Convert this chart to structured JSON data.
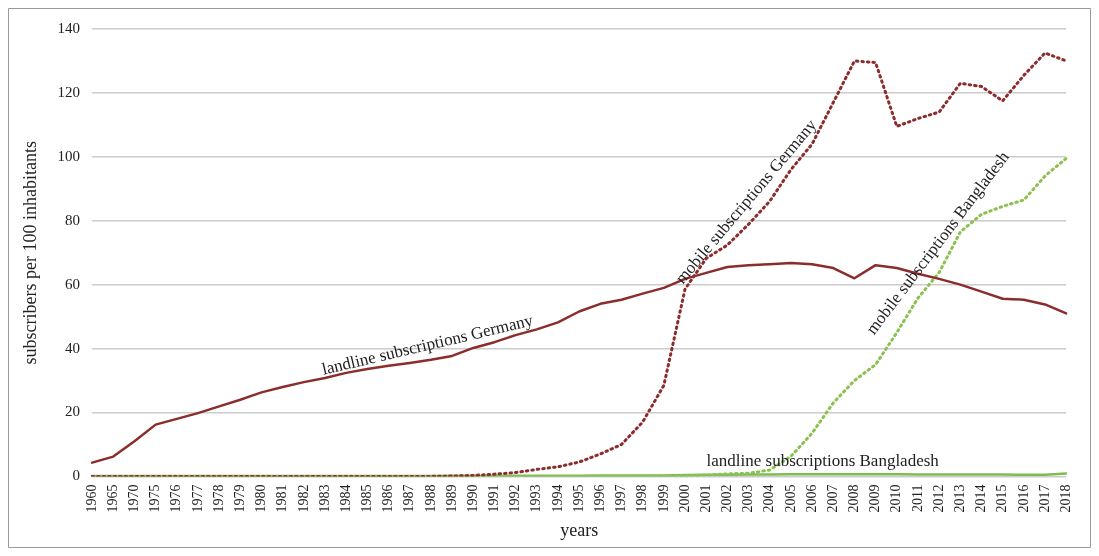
{
  "chart_data": {
    "type": "line",
    "xlabel": "years",
    "ylabel": "subscribers per 100 inhabitants",
    "categories": [
      "1960",
      "1965",
      "1970",
      "1975",
      "1976",
      "1977",
      "1978",
      "1979",
      "1980",
      "1981",
      "1982",
      "1983",
      "1984",
      "1985",
      "1986",
      "1987",
      "1988",
      "1989",
      "1990",
      "1991",
      "1992",
      "1993",
      "1994",
      "1995",
      "1996",
      "1997",
      "1998",
      "1999",
      "2000",
      "2001",
      "2002",
      "2003",
      "2004",
      "2005",
      "2006",
      "2007",
      "2008",
      "2009",
      "2010",
      "2011",
      "2012",
      "2013",
      "2014",
      "2015",
      "2016",
      "2017",
      "2018"
    ],
    "ylim": [
      0,
      140
    ],
    "yticks": [
      0,
      20,
      40,
      60,
      80,
      100,
      120,
      140
    ],
    "grid": "y",
    "legend": false,
    "marker": "none",
    "series": [
      {
        "name": "landline subscriptions Germany",
        "color": "#8b2d2d",
        "line_style": "solid",
        "values": [
          4.3,
          6.2,
          11,
          16.2,
          18,
          19.8,
          21.9,
          24,
          26.3,
          28,
          29.5,
          30.8,
          32.4,
          33.6,
          34.6,
          35.5,
          36.5,
          37.7,
          40.2,
          42,
          44.2,
          46,
          48.2,
          51.6,
          54,
          55.3,
          57.2,
          59,
          61.8,
          63.7,
          65.5,
          66.1,
          66.4,
          66.8,
          66.4,
          65.2,
          62,
          66.1,
          65.2,
          63.4,
          61.8,
          60,
          57.8,
          55.6,
          55.3,
          53.8,
          51
        ]
      },
      {
        "name": "mobile subscriptions Germany",
        "color": "#8b2d2d",
        "line_style": "dotted",
        "values": [
          0,
          0,
          0,
          0,
          0,
          0,
          0,
          0,
          0,
          0,
          0,
          0,
          0,
          0,
          0,
          0,
          0,
          0.1,
          0.3,
          0.7,
          1.2,
          2.2,
          3,
          4.5,
          7,
          10,
          17,
          28.5,
          58.6,
          68.2,
          72.4,
          78.9,
          86.1,
          96,
          104,
          117,
          130,
          129.5,
          109.5,
          112,
          114,
          123,
          122,
          117.5,
          125.5,
          132.5,
          130
        ]
      },
      {
        "name": "mobile subscriptions Bangladesh",
        "color": "#8cc152",
        "line_style": "dotted",
        "values": [
          0,
          0,
          0,
          0,
          0,
          0,
          0,
          0,
          0,
          0,
          0,
          0,
          0,
          0,
          0,
          0,
          0,
          0,
          0,
          0,
          0,
          0,
          0,
          0,
          0,
          0,
          0.1,
          0.1,
          0.2,
          0.4,
          0.8,
          1,
          2,
          6.3,
          13.5,
          23,
          30,
          35,
          45,
          55.8,
          63.8,
          76.5,
          82,
          84.5,
          86.5,
          94,
          99.5
        ]
      },
      {
        "name": "landline subscriptions Bangladesh",
        "color": "#7cbd50",
        "line_style": "solid",
        "values": [
          0.1,
          0.1,
          0.1,
          0.1,
          0.1,
          0.1,
          0.1,
          0.1,
          0.1,
          0.1,
          0.1,
          0.1,
          0.1,
          0.1,
          0.1,
          0.1,
          0.1,
          0.2,
          0.2,
          0.2,
          0.2,
          0.2,
          0.2,
          0.2,
          0.3,
          0.3,
          0.3,
          0.3,
          0.4,
          0.5,
          0.5,
          0.6,
          0.6,
          0.7,
          0.7,
          0.7,
          0.7,
          0.7,
          0.7,
          0.6,
          0.6,
          0.6,
          0.6,
          0.6,
          0.5,
          0.5,
          0.9
        ]
      }
    ]
  }
}
